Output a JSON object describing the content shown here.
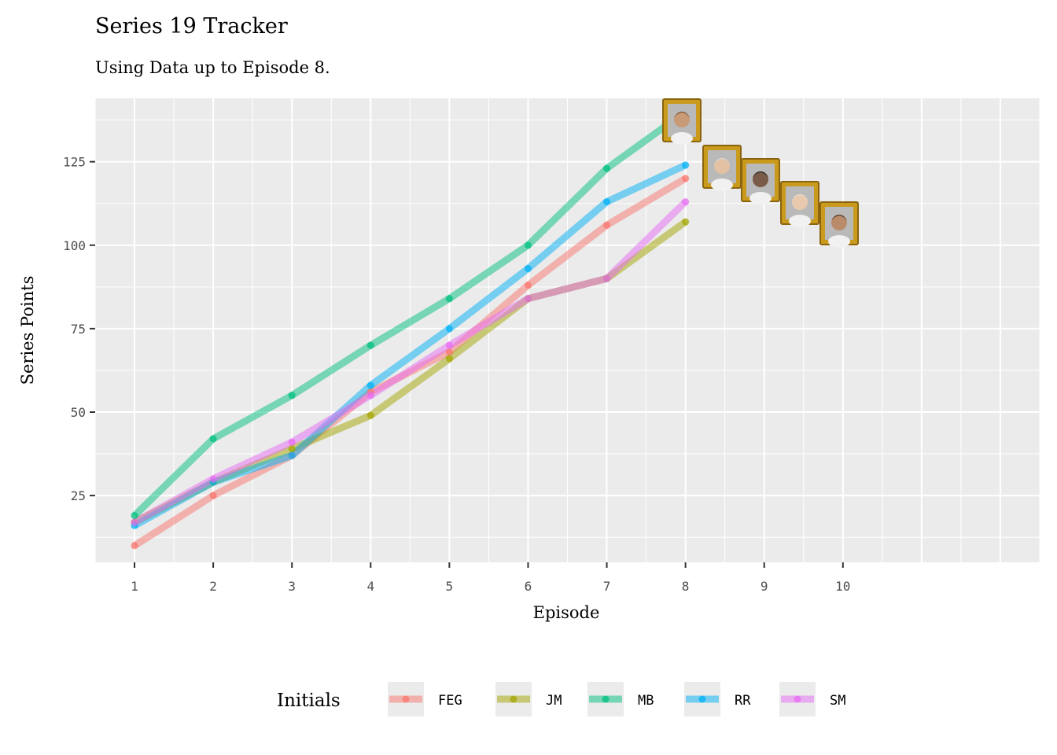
{
  "chart_data": {
    "type": "line",
    "title": "Series 19 Tracker",
    "subtitle": "Using Data up to Episode 8.",
    "xlabel": "Episode",
    "ylabel": "Series Points",
    "x_ticks": [
      1,
      2,
      3,
      4,
      5,
      6,
      7,
      8,
      9,
      10
    ],
    "y_ticks": [
      25,
      50,
      75,
      100,
      125
    ],
    "xlim": [
      0.5,
      12.5
    ],
    "ylim": [
      5,
      144
    ],
    "grid": true,
    "legend": {
      "title": "Initials",
      "position": "bottom"
    },
    "x": [
      1,
      2,
      3,
      4,
      5,
      6,
      7,
      8
    ],
    "series": [
      {
        "name": "FEG",
        "color": "#F8766D",
        "values": [
          10,
          25,
          37,
          56,
          68,
          88,
          106,
          120
        ]
      },
      {
        "name": "JM",
        "color": "#A3A500",
        "values": [
          17,
          29,
          39,
          49,
          66,
          84,
          90,
          107
        ]
      },
      {
        "name": "MB",
        "color": "#00BF7D",
        "values": [
          19,
          42,
          55,
          70,
          84,
          100,
          123,
          140
        ]
      },
      {
        "name": "RR",
        "color": "#00B0F6",
        "values": [
          16,
          29,
          37,
          58,
          75,
          93,
          113,
          124
        ]
      },
      {
        "name": "SM",
        "color": "#E76BF3",
        "values": [
          17,
          30,
          41,
          55,
          70,
          84,
          90,
          113
        ]
      }
    ],
    "portraits": [
      {
        "series": "MB",
        "icon": "contestant-portrait-icon"
      },
      {
        "series": "RR",
        "icon": "contestant-portrait-icon"
      },
      {
        "series": "FEG",
        "icon": "contestant-portrait-icon"
      },
      {
        "series": "SM",
        "icon": "contestant-portrait-icon"
      },
      {
        "series": "JM",
        "icon": "contestant-portrait-icon"
      }
    ]
  }
}
